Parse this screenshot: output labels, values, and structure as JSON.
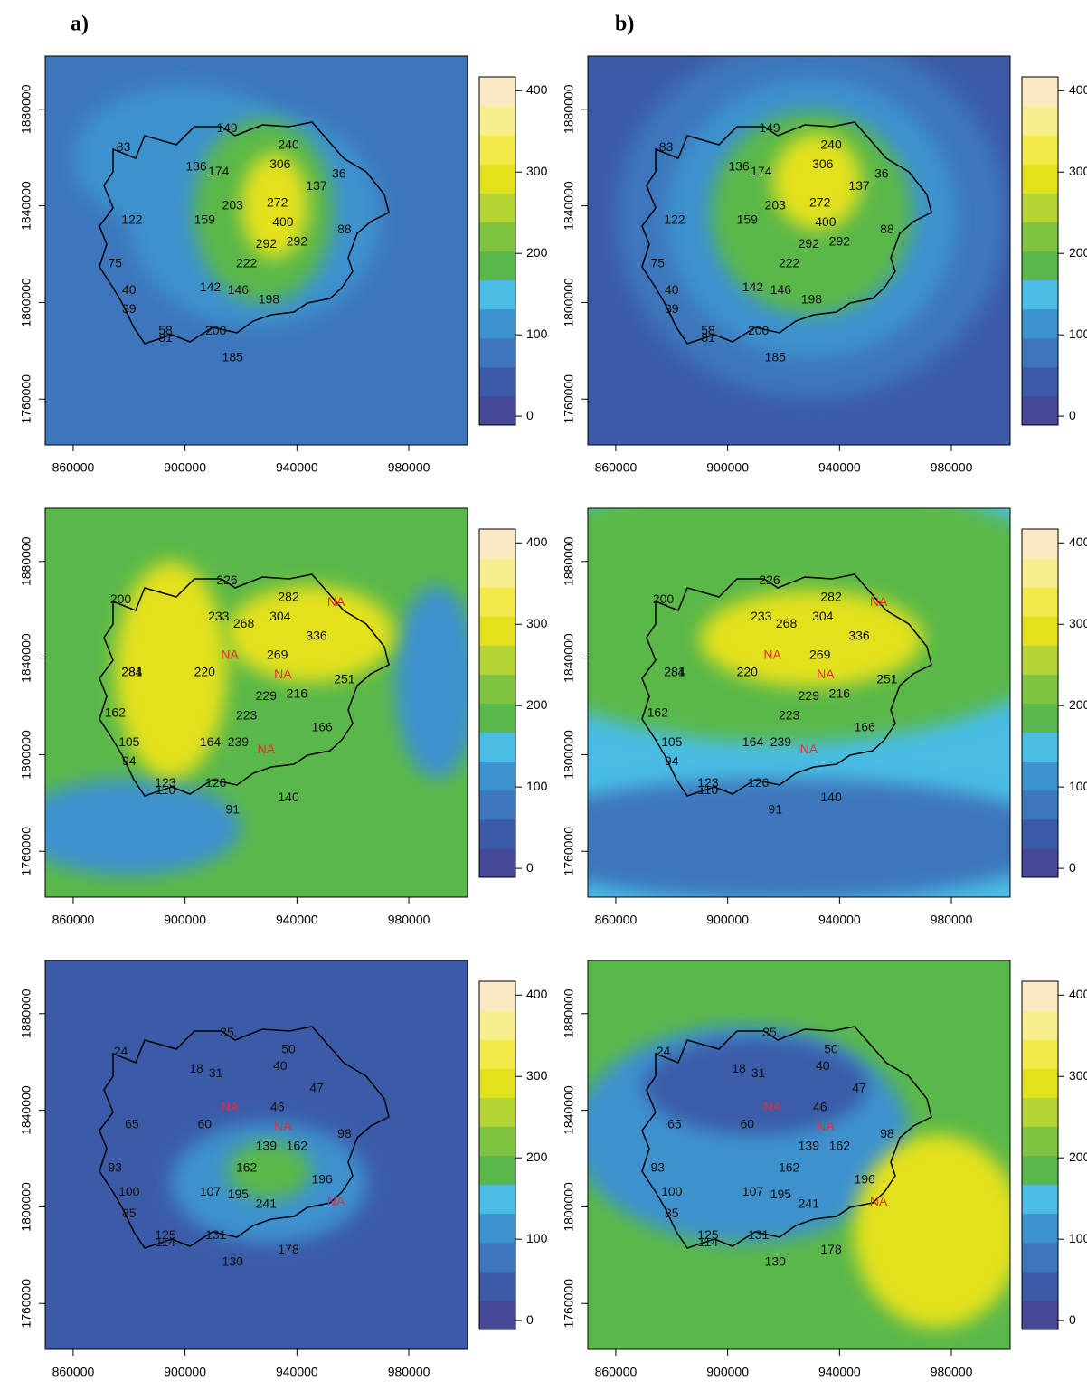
{
  "panel_labels": [
    "a)",
    "b)"
  ],
  "axes": {
    "xlim": [
      850000,
      1001000
    ],
    "ylim": [
      1741000,
      1902000
    ],
    "xticks": [
      860000,
      900000,
      940000,
      980000
    ],
    "yticks": [
      1760000,
      1800000,
      1840000,
      1880000
    ]
  },
  "colorbar": {
    "lim": [
      -11,
      417
    ],
    "ticks": [
      0,
      100,
      200,
      300,
      400
    ],
    "colors": [
      "#454897",
      "#3b5ba8",
      "#3d76bc",
      "#3c92ce",
      "#49bde4",
      "#5ab84a",
      "#80c342",
      "#b4d334",
      "#e3e11c",
      "#f2ea4a",
      "#f8ee8e",
      "#fce9c4"
    ]
  },
  "label_color": "#111111",
  "rows": [
    {
      "stations": [
        {
          "x": 915000,
          "y": 1872000,
          "label": 149
        },
        {
          "x": 937000,
          "y": 1865000,
          "label": 240
        },
        {
          "x": 878000,
          "y": 1864000,
          "label": 83
        },
        {
          "x": 934000,
          "y": 1857000,
          "label": 306
        },
        {
          "x": 904000,
          "y": 1856000,
          "label": 136
        },
        {
          "x": 912000,
          "y": 1854000,
          "label": 174
        },
        {
          "x": 947000,
          "y": 1848000,
          "label": 137
        },
        {
          "x": 955000,
          "y": 1853000,
          "label": 36
        },
        {
          "x": 917000,
          "y": 1840000,
          "label": 203
        },
        {
          "x": 933000,
          "y": 1841000,
          "label": 272
        },
        {
          "x": 907000,
          "y": 1834000,
          "label": 159
        },
        {
          "x": 881000,
          "y": 1834000,
          "label": 122
        },
        {
          "x": 935000,
          "y": 1833000,
          "label": 400
        },
        {
          "x": 957000,
          "y": 1830000,
          "label": 88
        },
        {
          "x": 929000,
          "y": 1824000,
          "label": 292
        },
        {
          "x": 940000,
          "y": 1825000,
          "label": 292
        },
        {
          "x": 922000,
          "y": 1816000,
          "label": 222
        },
        {
          "x": 875000,
          "y": 1816000,
          "label": 75
        },
        {
          "x": 909000,
          "y": 1806000,
          "label": 142
        },
        {
          "x": 919000,
          "y": 1805000,
          "label": 146
        },
        {
          "x": 930000,
          "y": 1801000,
          "label": 198
        },
        {
          "x": 880000,
          "y": 1805000,
          "label": 40
        },
        {
          "x": 880000,
          "y": 1797000,
          "label": 39
        },
        {
          "x": 893000,
          "y": 1788000,
          "label": 58
        },
        {
          "x": 893000,
          "y": 1785000,
          "label": 81
        },
        {
          "x": 911000,
          "y": 1788000,
          "label": 200
        },
        {
          "x": 917000,
          "y": 1777000,
          "label": 185
        }
      ],
      "fields": [
        {
          "base": 70,
          "blobs": [
            {
              "x": 900000,
              "y": 1860000,
              "rx": 40000,
              "ry": 30000,
              "value": 110
            },
            {
              "x": 925000,
              "y": 1835000,
              "rx": 45000,
              "ry": 45000,
              "value": 130
            },
            {
              "x": 928000,
              "y": 1838000,
              "rx": 25000,
              "ry": 38000,
              "value": 200
            },
            {
              "x": 932000,
              "y": 1840000,
              "rx": 12000,
              "ry": 22000,
              "value": 300
            }
          ]
        },
        {
          "base": 45,
          "blobs": [
            {
              "x": 930000,
              "y": 1835000,
              "rx": 70000,
              "ry": 75000,
              "value": 90
            },
            {
              "x": 930000,
              "y": 1835000,
              "rx": 52000,
              "ry": 58000,
              "value": 130
            },
            {
              "x": 930000,
              "y": 1837000,
              "rx": 36000,
              "ry": 42000,
              "value": 200
            },
            {
              "x": 932000,
              "y": 1850000,
              "rx": 16000,
              "ry": 20000,
              "value": 300
            }
          ]
        }
      ]
    },
    {
      "stations": [
        {
          "x": 915000,
          "y": 1872000,
          "label": 226
        },
        {
          "x": 877000,
          "y": 1864000,
          "label": 200
        },
        {
          "x": 937000,
          "y": 1865000,
          "label": 282
        },
        {
          "x": 912000,
          "y": 1857000,
          "label": 233
        },
        {
          "x": 921000,
          "y": 1854000,
          "label": 268
        },
        {
          "x": 934000,
          "y": 1857000,
          "label": 304
        },
        {
          "x": 954000,
          "y": 1863000,
          "label": "NA",
          "color": "#e03030"
        },
        {
          "x": 947000,
          "y": 1849000,
          "label": 336
        },
        {
          "x": 916000,
          "y": 1841000,
          "label": "NA",
          "color": "#e03030"
        },
        {
          "x": 933000,
          "y": 1841000,
          "label": 269
        },
        {
          "x": 881000,
          "y": 1834000,
          "label": 281
        },
        {
          "x": 881000,
          "y": 1834000,
          "label": 284
        },
        {
          "x": 907000,
          "y": 1834000,
          "label": 220
        },
        {
          "x": 935000,
          "y": 1833000,
          "label": "NA",
          "color": "#e03030"
        },
        {
          "x": 957000,
          "y": 1831000,
          "label": 251
        },
        {
          "x": 929000,
          "y": 1824000,
          "label": 229
        },
        {
          "x": 940000,
          "y": 1825000,
          "label": 216
        },
        {
          "x": 875000,
          "y": 1817000,
          "label": 162
        },
        {
          "x": 922000,
          "y": 1816000,
          "label": 223
        },
        {
          "x": 949000,
          "y": 1811000,
          "label": 166
        },
        {
          "x": 880000,
          "y": 1805000,
          "label": 105
        },
        {
          "x": 909000,
          "y": 1805000,
          "label": 164
        },
        {
          "x": 919000,
          "y": 1805000,
          "label": 239
        },
        {
          "x": 929000,
          "y": 1802000,
          "label": "NA",
          "color": "#e03030"
        },
        {
          "x": 880000,
          "y": 1797000,
          "label": 94
        },
        {
          "x": 893000,
          "y": 1788000,
          "label": 123
        },
        {
          "x": 893000,
          "y": 1785000,
          "label": 110
        },
        {
          "x": 911000,
          "y": 1788000,
          "label": 126
        },
        {
          "x": 917000,
          "y": 1777000,
          "label": 91
        },
        {
          "x": 937000,
          "y": 1782000,
          "label": 140
        }
      ],
      "fields": [
        {
          "base": 190,
          "blobs": [
            {
              "x": 880000,
              "y": 1770000,
              "rx": 40000,
              "ry": 20000,
              "value": 120
            },
            {
              "x": 990000,
              "y": 1830000,
              "rx": 15000,
              "ry": 40000,
              "value": 120
            },
            {
              "x": 895000,
              "y": 1835000,
              "rx": 20000,
              "ry": 45000,
              "value": 290
            },
            {
              "x": 945000,
              "y": 1850000,
              "rx": 30000,
              "ry": 20000,
              "value": 300
            }
          ]
        },
        {
          "base": 150,
          "blobs": [
            {
              "x": 920000,
              "y": 1860000,
              "rx": 110000,
              "ry": 55000,
              "value": 190
            },
            {
              "x": 930000,
              "y": 1848000,
              "rx": 40000,
              "ry": 20000,
              "value": 280
            },
            {
              "x": 920000,
              "y": 1765000,
              "rx": 100000,
              "ry": 25000,
              "value": 70
            }
          ]
        }
      ]
    },
    {
      "stations": [
        {
          "x": 915000,
          "y": 1872000,
          "label": 35
        },
        {
          "x": 877000,
          "y": 1864000,
          "label": 24
        },
        {
          "x": 937000,
          "y": 1865000,
          "label": 50
        },
        {
          "x": 904000,
          "y": 1857000,
          "label": 18
        },
        {
          "x": 911000,
          "y": 1855000,
          "label": 31
        },
        {
          "x": 934000,
          "y": 1858000,
          "label": 40
        },
        {
          "x": 947000,
          "y": 1849000,
          "label": 47
        },
        {
          "x": 916000,
          "y": 1841000,
          "label": "NA",
          "color": "#e03030"
        },
        {
          "x": 933000,
          "y": 1841000,
          "label": 46
        },
        {
          "x": 881000,
          "y": 1834000,
          "label": 65
        },
        {
          "x": 907000,
          "y": 1834000,
          "label": 60
        },
        {
          "x": 935000,
          "y": 1833000,
          "label": "NA",
          "color": "#e03030"
        },
        {
          "x": 957000,
          "y": 1830000,
          "label": 98
        },
        {
          "x": 929000,
          "y": 1825000,
          "label": 139
        },
        {
          "x": 940000,
          "y": 1825000,
          "label": 162
        },
        {
          "x": 875000,
          "y": 1816000,
          "label": 93
        },
        {
          "x": 922000,
          "y": 1816000,
          "label": 162
        },
        {
          "x": 949000,
          "y": 1811000,
          "label": 196
        },
        {
          "x": 880000,
          "y": 1806000,
          "label": 100
        },
        {
          "x": 909000,
          "y": 1806000,
          "label": 107
        },
        {
          "x": 919000,
          "y": 1805000,
          "label": 195
        },
        {
          "x": 929000,
          "y": 1801000,
          "label": 241
        },
        {
          "x": 954000,
          "y": 1802000,
          "label": "NA",
          "color": "#e03030"
        },
        {
          "x": 880000,
          "y": 1797000,
          "label": 85
        },
        {
          "x": 893000,
          "y": 1788000,
          "label": 125
        },
        {
          "x": 893000,
          "y": 1785000,
          "label": 114
        },
        {
          "x": 911000,
          "y": 1788000,
          "label": 131
        },
        {
          "x": 917000,
          "y": 1777000,
          "label": 130
        },
        {
          "x": 937000,
          "y": 1782000,
          "label": 178
        }
      ],
      "fields": [
        {
          "base": 60,
          "blobs": [
            {
              "x": 930000,
              "y": 1810000,
              "rx": 35000,
              "ry": 25000,
              "value": 120
            },
            {
              "x": 930000,
              "y": 1815000,
              "rx": 15000,
              "ry": 12000,
              "value": 190
            }
          ]
        },
        {
          "base": 200,
          "blobs": [
            {
              "x": 905000,
              "y": 1830000,
              "rx": 60000,
              "ry": 45000,
              "value": 120
            },
            {
              "x": 910000,
              "y": 1850000,
              "rx": 40000,
              "ry": 20000,
              "value": 40
            },
            {
              "x": 975000,
              "y": 1790000,
              "rx": 30000,
              "ry": 40000,
              "value": 290
            }
          ]
        }
      ]
    }
  ]
}
